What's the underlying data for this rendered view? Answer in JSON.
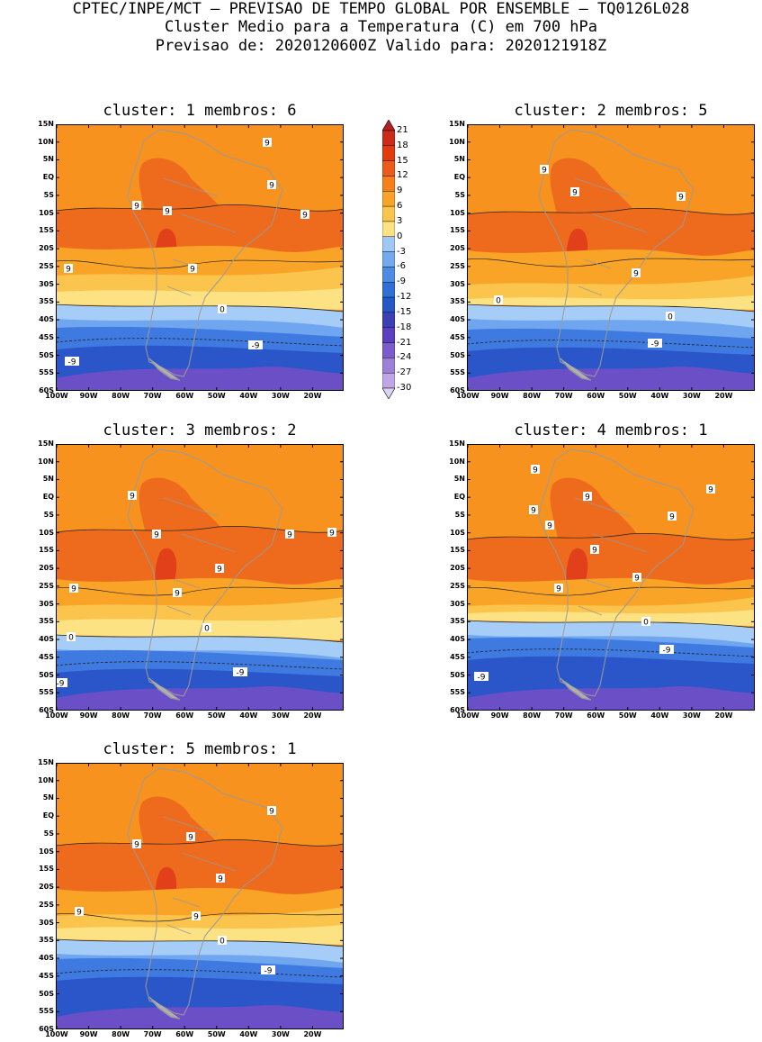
{
  "header": {
    "line1": "CPTEC/INPE/MCT — PREVISAO DE TEMPO GLOBAL POR ENSEMBLE — TQ0126L028",
    "line2": "Cluster Medio para a Temperatura (C) em 700 hPa",
    "line3": "Previsao de: 2020120600Z   Valido para: 2020121918Z"
  },
  "lat_labels": [
    "15N",
    "10N",
    "5N",
    "EQ",
    "5S",
    "10S",
    "15S",
    "20S",
    "25S",
    "30S",
    "35S",
    "40S",
    "45S",
    "50S",
    "55S",
    "60S"
  ],
  "lon_labels": [
    "100W",
    "90W",
    "80W",
    "70W",
    "60W",
    "50W",
    "40W",
    "30W",
    "20W"
  ],
  "panels": [
    {
      "title": "cluster: 1   membros: 6",
      "contours": [
        "9",
        "9",
        "9",
        "9",
        "9",
        "9",
        "9",
        "0",
        "-9",
        "-9"
      ]
    },
    {
      "title": "cluster: 2   membros: 5",
      "contours": [
        "9",
        "9",
        "9",
        "9",
        "0",
        "0",
        "-9"
      ]
    },
    {
      "title": "cluster: 3   membros: 2",
      "contours": [
        "9",
        "9",
        "9",
        "9",
        "9",
        "9",
        "9",
        "0",
        "0",
        "-9",
        "-9"
      ]
    },
    {
      "title": "cluster: 4   membros: 1",
      "contours": [
        "9",
        "9",
        "9",
        "9",
        "9",
        "9",
        "9",
        "9",
        "9",
        "0",
        "-9",
        "-9"
      ]
    },
    {
      "title": "cluster: 5   membros: 1",
      "contours": [
        "9",
        "9",
        "9",
        "9",
        "9",
        "9",
        "0",
        "-9"
      ]
    }
  ],
  "colorbar": {
    "labels": [
      "21",
      "18",
      "15",
      "12",
      "9",
      "6",
      "3",
      "0",
      "-3",
      "-6",
      "-9",
      "-12",
      "-15",
      "-18",
      "-21",
      "-24",
      "-27",
      "-30"
    ],
    "colors": [
      "#b22222",
      "#cc2a1a",
      "#e13b0f",
      "#ef5a1a",
      "#f77f1a",
      "#f9a327",
      "#fbc44c",
      "#fde283",
      "#9ec9f6",
      "#74aaf0",
      "#4d8be5",
      "#2f6fda",
      "#2456c7",
      "#3b40b5",
      "#5a3fbf",
      "#7a5ccc",
      "#9b80d9",
      "#bda7e6",
      "#ddd2f2"
    ]
  }
}
